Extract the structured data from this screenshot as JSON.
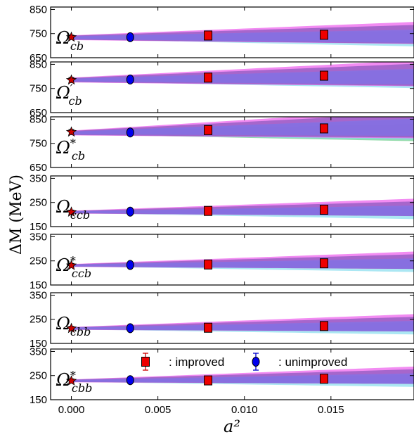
{
  "chart_data": {
    "type": "scatter",
    "title": "",
    "xlabel": "a²",
    "ylabel": "ΔM (MeV)",
    "xlim": [
      -0.0012,
      0.0198
    ],
    "x_ticks": [
      "0.000",
      "0.005",
      "0.010",
      "0.015"
    ],
    "x_tick_values": [
      0.0,
      0.005,
      0.01,
      0.015
    ],
    "legend": {
      "placement": "bottom panel, center",
      "items": [
        {
          "marker": "square",
          "label": ": improved",
          "color": "#ee0000"
        },
        {
          "marker": "circle",
          "label": ": unimproved",
          "color": "#0000ee"
        }
      ]
    },
    "colors": {
      "improved": "#ee0000",
      "unimproved": "#0000ee",
      "extrapolated": "#cc0000",
      "band_magenta": "#ee66ee",
      "band_purple": "#8855bb",
      "band_blue": "#7777ee",
      "band_cyan": "#88ddee",
      "band_green": "#66cc88"
    },
    "panels": [
      {
        "label": "Ω",
        "sub": "cb",
        "sup": "",
        "ylim": [
          650,
          860
        ],
        "yticks": [
          650,
          750,
          850
        ],
        "improved": [
          {
            "x": 0.0079,
            "y": 742,
            "err": 12
          },
          {
            "x": 0.0146,
            "y": 745,
            "err": 14
          }
        ],
        "unimproved": [
          {
            "x": 0.0034,
            "y": 735,
            "err": 6
          }
        ],
        "extrapolated": {
          "x": 0.0,
          "y": 735,
          "err": 8
        },
        "band": {
          "y0": 733,
          "slope": 700,
          "w0": 10,
          "wslope": 1800
        }
      },
      {
        "label": "Ω",
        "sub": "cb",
        "sup": "′",
        "ylim": [
          650,
          860
        ],
        "yticks": [
          650,
          750,
          850
        ],
        "improved": [
          {
            "x": 0.0079,
            "y": 795,
            "err": 12
          },
          {
            "x": 0.0146,
            "y": 803,
            "err": 14
          }
        ],
        "unimproved": [
          {
            "x": 0.0034,
            "y": 787,
            "err": 6
          }
        ],
        "extrapolated": {
          "x": 0.0,
          "y": 785,
          "err": 10
        },
        "band": {
          "y0": 785,
          "slope": 1100,
          "w0": 10,
          "wslope": 2200
        }
      },
      {
        "label": "Ω",
        "sub": "cb",
        "sup": "*",
        "ylim": [
          650,
          860
        ],
        "yticks": [
          650,
          750,
          850
        ],
        "improved": [
          {
            "x": 0.0079,
            "y": 805,
            "err": 14
          },
          {
            "x": 0.0146,
            "y": 812,
            "err": 14
          }
        ],
        "unimproved": [
          {
            "x": 0.0034,
            "y": 795,
            "err": 8
          }
        ],
        "extrapolated": {
          "x": 0.0,
          "y": 797,
          "err": 10
        },
        "band": {
          "y0": 793,
          "slope": 1600,
          "w0": 10,
          "wslope": 2500
        }
      },
      {
        "label": "Ω",
        "sub": "ccb",
        "sup": "",
        "ylim": [
          150,
          360
        ],
        "yticks": [
          150,
          250,
          350
        ],
        "improved": [
          {
            "x": 0.0079,
            "y": 215,
            "err": 12
          },
          {
            "x": 0.0146,
            "y": 220,
            "err": 14
          }
        ],
        "unimproved": [
          {
            "x": 0.0034,
            "y": 212,
            "err": 6
          }
        ],
        "extrapolated": {
          "x": 0.0,
          "y": 210,
          "err": 8
        },
        "band": {
          "y0": 210,
          "slope": 700,
          "w0": 6,
          "wslope": 1500
        }
      },
      {
        "label": "Ω",
        "sub": "ccb",
        "sup": "*",
        "ylim": [
          150,
          360
        ],
        "yticks": [
          150,
          250,
          350
        ],
        "improved": [
          {
            "x": 0.0079,
            "y": 235,
            "err": 12
          },
          {
            "x": 0.0146,
            "y": 240,
            "err": 14
          }
        ],
        "unimproved": [
          {
            "x": 0.0034,
            "y": 233,
            "err": 6
          }
        ],
        "extrapolated": {
          "x": 0.0,
          "y": 231,
          "err": 8
        },
        "band": {
          "y0": 231,
          "slope": 800,
          "w0": 6,
          "wslope": 1500
        }
      },
      {
        "label": "Ω",
        "sub": "cbb",
        "sup": "",
        "ylim": [
          150,
          360
        ],
        "yticks": [
          150,
          250,
          350
        ],
        "improved": [
          {
            "x": 0.0079,
            "y": 215,
            "err": 12
          },
          {
            "x": 0.0146,
            "y": 222,
            "err": 14
          }
        ],
        "unimproved": [
          {
            "x": 0.0034,
            "y": 213,
            "err": 6
          }
        ],
        "extrapolated": {
          "x": 0.0,
          "y": 212,
          "err": 8
        },
        "band": {
          "y0": 212,
          "slope": 900,
          "w0": 6,
          "wslope": 1500
        }
      },
      {
        "label": "Ω",
        "sub": "cbb",
        "sup": "*",
        "ylim": [
          150,
          360
        ],
        "yticks": [
          150,
          250,
          350
        ],
        "improved": [
          {
            "x": 0.0079,
            "y": 230,
            "err": 12
          },
          {
            "x": 0.0146,
            "y": 237,
            "err": 14
          }
        ],
        "unimproved": [
          {
            "x": 0.0034,
            "y": 231,
            "err": 6
          }
        ],
        "extrapolated": {
          "x": 0.0,
          "y": 228,
          "err": 8
        },
        "band": {
          "y0": 228,
          "slope": 900,
          "w0": 6,
          "wslope": 1500
        }
      }
    ]
  }
}
